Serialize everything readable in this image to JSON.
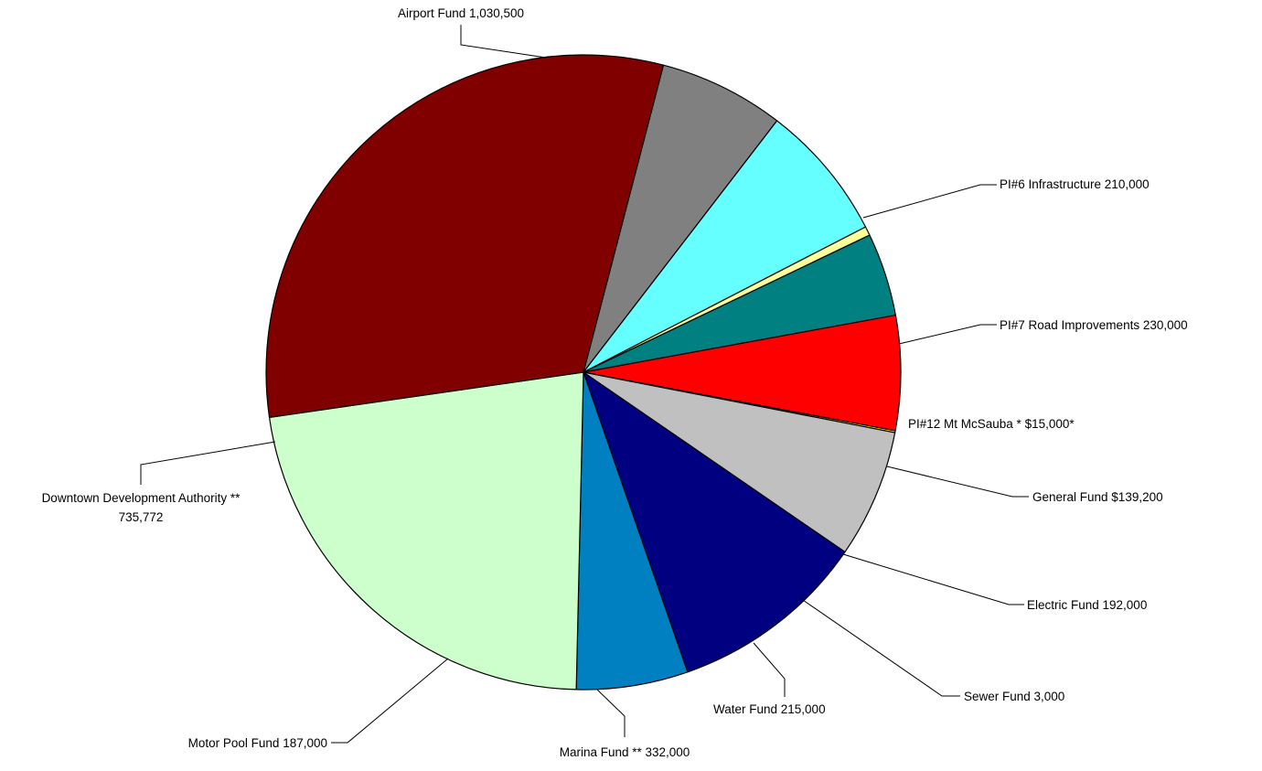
{
  "chart_data": {
    "type": "pie",
    "title": "",
    "slices": [
      {
        "label": "PI#6 Infrastructure 210,000",
        "value": 210000,
        "color": "#808080"
      },
      {
        "label": "PI#7 Road Improvements 230,000",
        "value": 230000,
        "color": "#66ffff"
      },
      {
        "label": "PI#12 Mt McSauba *  $15,000*",
        "value": 15000,
        "color": "#ffff99"
      },
      {
        "label": "General Fund $139,200",
        "value": 139200,
        "color": "#008080"
      },
      {
        "label": "Electric Fund 192,000",
        "value": 192000,
        "color": "#ff0000"
      },
      {
        "label": "Sewer Fund 3,000",
        "value": 3000,
        "color": "#ffff00"
      },
      {
        "label": "Water Fund 215,000",
        "value": 215000,
        "color": "#c0c0c0"
      },
      {
        "label": "Marina Fund  ** 332,000",
        "value": 332000,
        "color": "#000080"
      },
      {
        "label": "Motor Pool Fund 187,000",
        "value": 187000,
        "color": "#0080c0"
      },
      {
        "label": "Downtown Development Authority  ** 735,772",
        "label_lines": [
          "Downtown Development Authority  **",
          "735,772"
        ],
        "value": 735772,
        "color": "#ccffcc"
      },
      {
        "label": "Airport Fund  1,030,500",
        "value": 1030500,
        "color": "#800000"
      }
    ]
  }
}
